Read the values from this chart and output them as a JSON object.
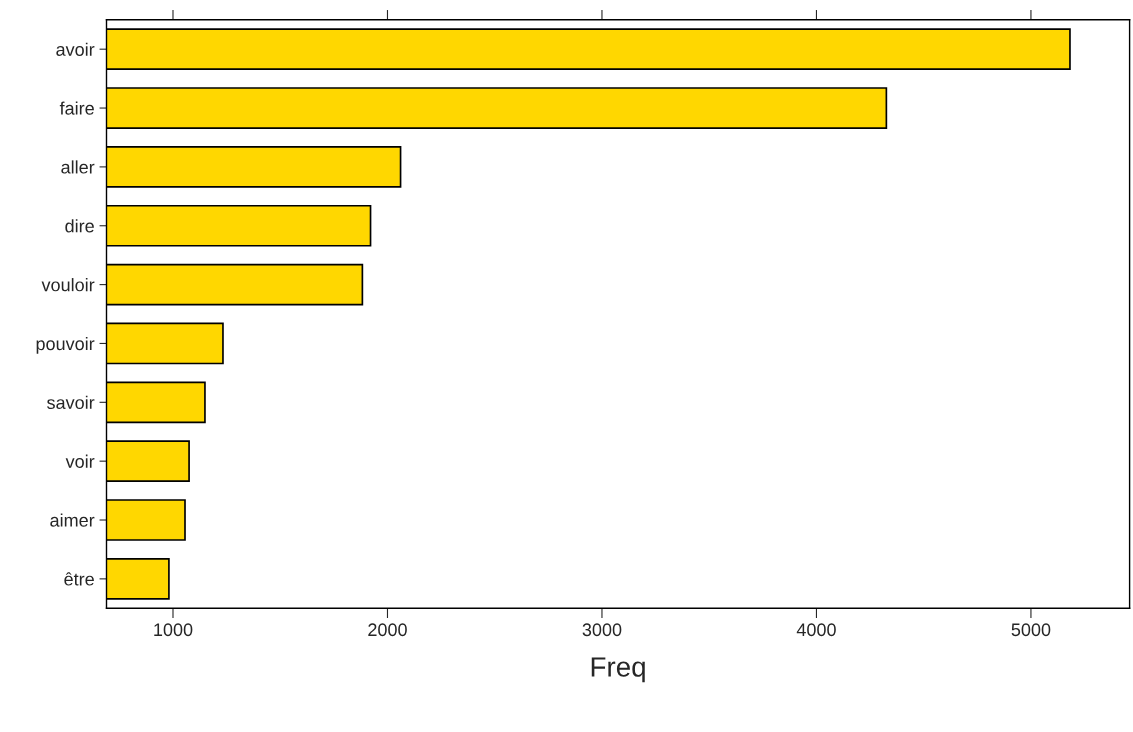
{
  "chart_data": {
    "type": "bar",
    "orientation": "horizontal",
    "xlabel": "Freq",
    "categories": [
      "avoir",
      "faire",
      "aller",
      "dire",
      "vouloir",
      "pouvoir",
      "savoir",
      "voir",
      "aimer",
      "être"
    ],
    "values": [
      5182,
      4326,
      2061,
      1921,
      1883,
      1233,
      1149,
      1075,
      1056,
      981
    ],
    "color": "#ffd700",
    "xlim": [
      690,
      5460
    ],
    "xticks": [
      1000,
      2000,
      3000,
      4000,
      5000
    ],
    "grid": false,
    "legend": false
  }
}
